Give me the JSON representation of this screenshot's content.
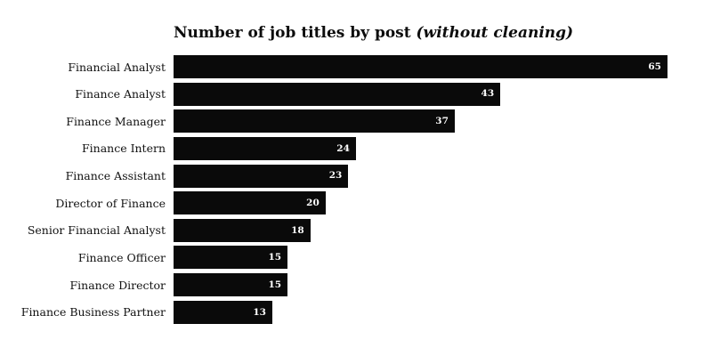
{
  "chart_data": {
    "type": "bar",
    "orientation": "horizontal",
    "title": "Number of job titles by post",
    "title_italic_suffix": " (without cleaning)",
    "categories": [
      "Financial Analyst",
      "Finance Analyst",
      "Finance Manager",
      "Finance Intern",
      "Finance Assistant",
      "Director of Finance",
      "Senior Financial Analyst",
      "Finance Officer",
      "Finance Director",
      "Finance Business Partner"
    ],
    "values": [
      65,
      43,
      37,
      24,
      23,
      20,
      18,
      15,
      15,
      13
    ],
    "xlim": [
      0,
      65
    ],
    "grid": false,
    "legend_position": "none",
    "axes_visible": false,
    "value_labels_inside_bar_end": true,
    "colors": {
      "bar": "#0a0a0a",
      "value_label": "#ffffff",
      "category_label": "#111111",
      "title": "#0d0d0d",
      "background": "#ffffff"
    }
  }
}
